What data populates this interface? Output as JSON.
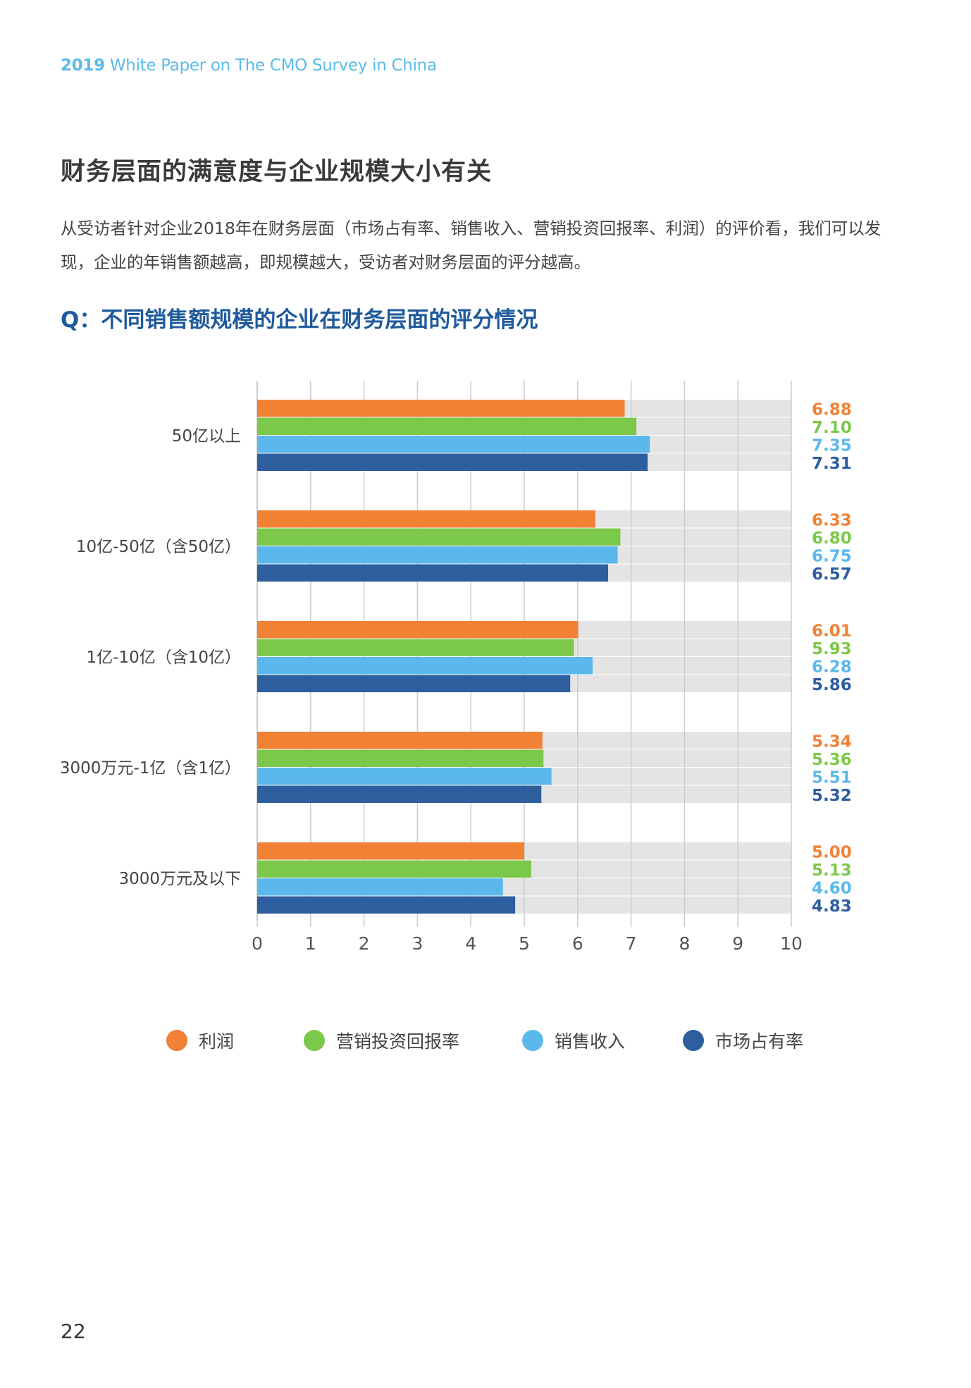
{
  "header": {
    "year": "2019",
    "subtitle": "White Paper on The CMO Survey in China"
  },
  "section_title": "财务层面的满意度与企业规模大小有关",
  "intro_text": "从受访者针对企业2018年在财务层面（市场占有率、销售收入、营销投资回报率、利润）的评价看，我们可以发现，企业的年销售额越高，即规模越大，受访者对财务层面的评分越高。",
  "question": "Q：不同销售额规模的企业在财务层面的评分情况",
  "colors": {
    "profit": "#f08135",
    "roi": "#7cc84a",
    "sales": "#5bb8ec",
    "share": "#2e5e9e",
    "track": "#e4e4e4",
    "grid": "#cccccc"
  },
  "chart_data": {
    "type": "bar",
    "orientation": "horizontal",
    "title": "Q：不同销售额规模的企业在财务层面的评分情况",
    "categories": [
      "50亿以上",
      "10亿-50亿（含50亿）",
      "1亿-10亿（含10亿）",
      "3000万元-1亿（含1亿）",
      "3000万元及以下"
    ],
    "series": [
      {
        "name": "利润",
        "color": "#f08135",
        "values": [
          6.88,
          6.33,
          6.01,
          5.34,
          5.0
        ]
      },
      {
        "name": "营销投资回报率",
        "color": "#7cc84a",
        "values": [
          7.1,
          6.8,
          5.93,
          5.36,
          5.13
        ]
      },
      {
        "name": "销售收入",
        "color": "#5bb8ec",
        "values": [
          7.35,
          6.75,
          6.28,
          5.51,
          4.6
        ]
      },
      {
        "name": "市场占有率",
        "color": "#2e5e9e",
        "values": [
          7.31,
          6.57,
          5.86,
          5.32,
          4.83
        ]
      }
    ],
    "value_labels": [
      [
        "6.88",
        "7.10",
        "7.35",
        "7.31"
      ],
      [
        "6.33",
        "6.80",
        "6.75",
        "6.57"
      ],
      [
        "6.01",
        "5.93",
        "6.28",
        "5.86"
      ],
      [
        "5.34",
        "5.36",
        "5.51",
        "5.32"
      ],
      [
        "5.00",
        "5.13",
        "4.60",
        "4.83"
      ]
    ],
    "xlim": [
      0,
      10
    ],
    "xticks": [
      "0",
      "1",
      "2",
      "3",
      "4",
      "5",
      "6",
      "7",
      "8",
      "9",
      "10"
    ],
    "grid": true,
    "legend_position": "bottom"
  },
  "legend": {
    "items": [
      {
        "label": "利润",
        "color": "#f08135"
      },
      {
        "label": "营销投资回报率",
        "color": "#7cc84a"
      },
      {
        "label": "销售收入",
        "color": "#5bb8ec"
      },
      {
        "label": "市场占有率",
        "color": "#2e5e9e"
      }
    ]
  },
  "page_number": "22"
}
